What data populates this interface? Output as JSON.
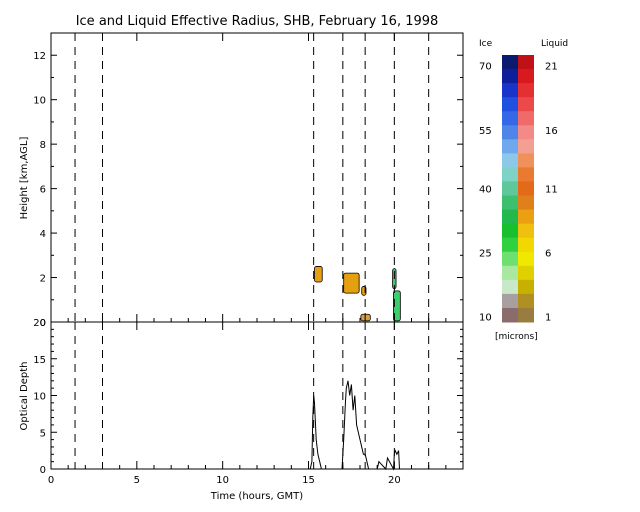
{
  "title": "Ice and Liquid Effective Radius, SHB, February 16, 1998",
  "colorbar": {
    "ice_label": "Ice",
    "liquid_label": "Liquid",
    "units_label": "[microns]",
    "ice_ticks": [
      "70",
      "55",
      "40",
      "25",
      "10"
    ],
    "liquid_ticks": [
      "21",
      "16",
      "11",
      "6",
      "1"
    ],
    "ice_colors": [
      "#0a1a6e",
      "#0f1f9a",
      "#1a33c8",
      "#2050e0",
      "#3468e6",
      "#4f84e8",
      "#6fa8ec",
      "#8cc8e8",
      "#7fd2c6",
      "#5ec89a",
      "#3cbf6e",
      "#22b84e",
      "#18c030",
      "#30d040",
      "#6ee070",
      "#a8e8a0",
      "#c8e8c8",
      "#a8a0a0",
      "#8a6c6c"
    ],
    "liquid_colors": [
      "#c01018",
      "#d81a20",
      "#e43030",
      "#ec4a4a",
      "#f06a6a",
      "#f48a88",
      "#f4a090",
      "#f0905a",
      "#ea7a30",
      "#e26a18",
      "#e0801a",
      "#eaa010",
      "#f0c010",
      "#f0d800",
      "#f0e800",
      "#e0d000",
      "#c8b000",
      "#b09020",
      "#9a7c40"
    ]
  },
  "chart_data": [
    {
      "type": "heatmap",
      "ylabel": "Height [km,AGL]",
      "ylim": [
        0,
        13
      ],
      "yticks": [
        "0",
        "2",
        "4",
        "6",
        "8",
        "10",
        "12"
      ],
      "xlim": [
        0,
        24
      ],
      "dashed_time_lines": [
        1.4,
        3.0,
        15.3,
        17.0,
        18.3,
        20.0,
        22.0
      ],
      "cloud_patches": [
        {
          "phase": "liquid",
          "t0": 15.35,
          "t1": 15.8,
          "z0": 1.8,
          "z1": 2.5,
          "color": "#e4a010"
        },
        {
          "phase": "liquid",
          "t0": 17.05,
          "t1": 17.95,
          "z0": 1.3,
          "z1": 2.2,
          "color": "#e4a010"
        },
        {
          "phase": "liquid",
          "t0": 18.1,
          "t1": 18.35,
          "z0": 1.2,
          "z1": 1.6,
          "color": "#e4a010"
        },
        {
          "phase": "liquid",
          "t0": 18.05,
          "t1": 18.6,
          "z0": 0.05,
          "z1": 0.35,
          "color": "#d8a040"
        },
        {
          "phase": "ice",
          "t0": 19.9,
          "t1": 20.1,
          "z0": 1.5,
          "z1": 2.4,
          "color": "#3ccf6a"
        },
        {
          "phase": "ice",
          "t0": 19.95,
          "t1": 20.35,
          "z0": 0.05,
          "z1": 1.4,
          "color": "#3ccf6a"
        }
      ]
    },
    {
      "type": "line",
      "xlabel": "Time (hours, GMT)",
      "ylabel": "Optical Depth",
      "xlim": [
        0,
        24
      ],
      "ylim": [
        0,
        20
      ],
      "xticks": [
        "0",
        "5",
        "10",
        "15",
        "20"
      ],
      "yticks": [
        "0",
        "5",
        "10",
        "15",
        "20"
      ],
      "dashed_time_lines": [
        1.4,
        3.0,
        15.3,
        17.0,
        18.3,
        20.0,
        22.0
      ],
      "series": [
        {
          "x": [
            15.1,
            15.2,
            15.25,
            15.3,
            15.35,
            15.45,
            15.55,
            15.65,
            15.75,
            16.95,
            17.05,
            17.15,
            17.2,
            17.3,
            17.4,
            17.5,
            17.6,
            17.7,
            17.8,
            17.9,
            18.0,
            18.1,
            18.2,
            18.3,
            18.4,
            18.5,
            19.0,
            19.1,
            19.5,
            19.6,
            19.95,
            20.0,
            20.05,
            20.15,
            20.25,
            20.3
          ],
          "y": [
            0,
            1,
            7,
            10,
            9,
            4,
            2,
            1,
            0,
            0,
            4,
            9,
            11,
            12,
            10,
            11.5,
            8,
            10,
            6,
            5,
            4,
            3,
            2,
            2,
            1,
            0,
            0,
            1,
            0,
            1.5,
            0,
            2,
            2.5,
            2,
            2.5,
            0
          ]
        }
      ]
    }
  ]
}
